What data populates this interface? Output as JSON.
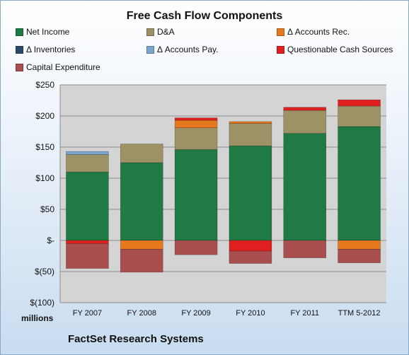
{
  "chart_data": {
    "type": "bar",
    "stacked": true,
    "title": "Free Cash Flow Components",
    "categories": [
      "FY 2007",
      "FY 2008",
      "FY 2009",
      "FY 2010",
      "FY 2011",
      "TTM 5-2012"
    ],
    "y_tick_labels": [
      "$250",
      "$200",
      "$150",
      "$100",
      "$50",
      "$-",
      "$(50)",
      "$(100)"
    ],
    "y_ticks": [
      250,
      200,
      150,
      100,
      50,
      0,
      -50,
      -100
    ],
    "ylim": [
      -100,
      250
    ],
    "unit_label": "millions",
    "grid": true,
    "legend_position": "top",
    "series": [
      {
        "name": "Net Income",
        "color": "#1f7a44",
        "values": [
          110,
          125,
          146,
          152,
          172,
          183
        ]
      },
      {
        "name": "D&A",
        "color": "#9c9266",
        "values": [
          28,
          30,
          35,
          36,
          37,
          33
        ]
      },
      {
        "name": "Δ Accounts Rec.",
        "color": "#e6781e",
        "values": [
          0,
          -14,
          12,
          3,
          0,
          -14
        ]
      },
      {
        "name": "Δ Inventories",
        "color": "#2a4a6a",
        "values": [
          0,
          0,
          0,
          0,
          0,
          0
        ]
      },
      {
        "name": "Δ Accounts Pay.",
        "color": "#7aa6cf",
        "values": [
          5,
          0,
          0,
          0,
          0,
          0
        ]
      },
      {
        "name": "Questionable Cash Sources",
        "color": "#e02020",
        "values": [
          -5,
          0,
          4,
          -17,
          5,
          10
        ]
      },
      {
        "name": "Capital Expenditure",
        "color": "#a94e4e",
        "values": [
          -40,
          -37,
          -23,
          -20,
          -28,
          -22
        ]
      }
    ]
  },
  "footer": {
    "company": "FactSet Research Systems"
  }
}
